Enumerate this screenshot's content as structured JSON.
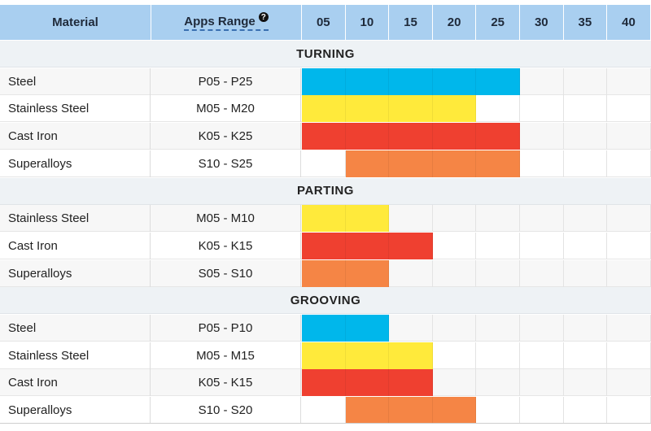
{
  "header": {
    "material_label": "Material",
    "apps_range_label": "Apps Range",
    "help_icon": "question-circle-icon",
    "grades": [
      "05",
      "10",
      "15",
      "20",
      "25",
      "30",
      "35",
      "40"
    ]
  },
  "colors": {
    "P": "#00b7eb",
    "M": "#ffea3b",
    "K": "#ef4030",
    "S": "#f58545"
  },
  "sections": [
    {
      "title": "TURNING",
      "rows": [
        {
          "material": "Steel",
          "range": "P05 - P25",
          "group": "P",
          "from": 0,
          "to": 4
        },
        {
          "material": "Stainless Steel",
          "range": "M05 - M20",
          "group": "M",
          "from": 0,
          "to": 3
        },
        {
          "material": "Cast Iron",
          "range": "K05 - K25",
          "group": "K",
          "from": 0,
          "to": 4
        },
        {
          "material": "Superalloys",
          "range": "S10 - S25",
          "group": "S",
          "from": 1,
          "to": 4
        }
      ]
    },
    {
      "title": "PARTING",
      "rows": [
        {
          "material": "Stainless Steel",
          "range": "M05 - M10",
          "group": "M",
          "from": 0,
          "to": 1
        },
        {
          "material": "Cast Iron",
          "range": "K05 - K15",
          "group": "K",
          "from": 0,
          "to": 2
        },
        {
          "material": "Superalloys",
          "range": "S05 - S10",
          "group": "S",
          "from": 0,
          "to": 1
        }
      ]
    },
    {
      "title": "GROOVING",
      "rows": [
        {
          "material": "Steel",
          "range": "P05 - P10",
          "group": "P",
          "from": 0,
          "to": 1
        },
        {
          "material": "Stainless Steel",
          "range": "M05 - M15",
          "group": "M",
          "from": 0,
          "to": 2
        },
        {
          "material": "Cast Iron",
          "range": "K05 - K15",
          "group": "K",
          "from": 0,
          "to": 2
        },
        {
          "material": "Superalloys",
          "range": "S10 - S20",
          "group": "S",
          "from": 1,
          "to": 3
        }
      ]
    }
  ]
}
